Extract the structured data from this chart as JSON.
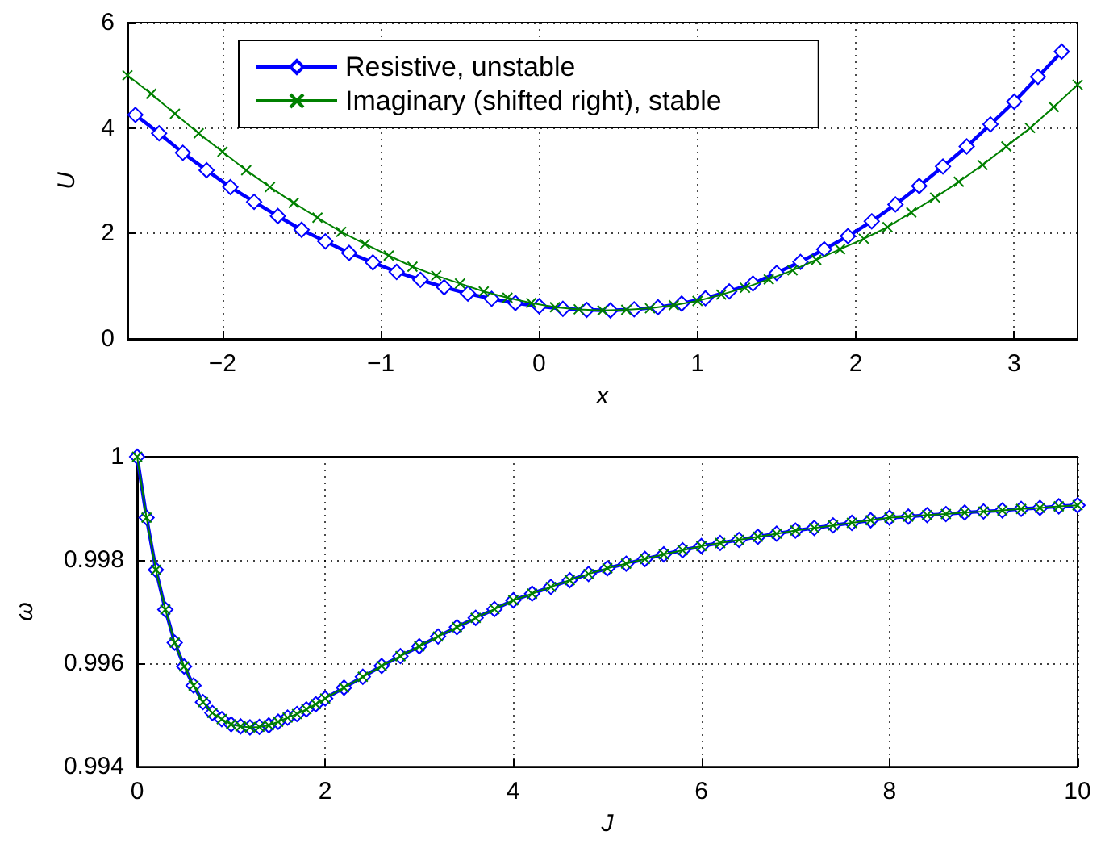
{
  "chart_data": [
    {
      "type": "line",
      "xlabel": "x",
      "ylabel": "U",
      "xlim": [
        -2.6,
        3.4
      ],
      "ylim": [
        0,
        6
      ],
      "xticks": [
        -2,
        -1,
        0,
        1,
        2,
        3
      ],
      "yticks": [
        0,
        2,
        4,
        6
      ],
      "grid": true,
      "legend": "top",
      "series": [
        {
          "name": "Resistive, unstable",
          "color": "#0000ff",
          "marker": "diamond",
          "x": [
            -2.55,
            -2.4,
            -2.25,
            -2.1,
            -1.95,
            -1.8,
            -1.65,
            -1.5,
            -1.35,
            -1.2,
            -1.05,
            -0.9,
            -0.75,
            -0.6,
            -0.45,
            -0.3,
            -0.15,
            0,
            0.15,
            0.3,
            0.45,
            0.6,
            0.75,
            0.9,
            1.05,
            1.2,
            1.35,
            1.5,
            1.65,
            1.8,
            1.95,
            2.1,
            2.25,
            2.4,
            2.55,
            2.7,
            2.85,
            3.0,
            3.15,
            3.3
          ],
          "values": [
            4.25,
            3.9,
            3.53,
            3.2,
            2.88,
            2.6,
            2.33,
            2.07,
            1.85,
            1.63,
            1.45,
            1.27,
            1.12,
            0.98,
            0.86,
            0.76,
            0.68,
            0.62,
            0.57,
            0.55,
            0.54,
            0.56,
            0.6,
            0.67,
            0.77,
            0.9,
            1.05,
            1.25,
            1.46,
            1.7,
            1.95,
            2.23,
            2.55,
            2.9,
            3.27,
            3.65,
            4.07,
            4.5,
            4.97,
            5.45
          ]
        },
        {
          "name": "Imaginary (shifted right), stable",
          "color": "#008000",
          "marker": "cross",
          "x": [
            -2.6,
            -2.45,
            -2.3,
            -2.15,
            -2.0,
            -1.85,
            -1.7,
            -1.55,
            -1.4,
            -1.25,
            -1.1,
            -0.95,
            -0.8,
            -0.65,
            -0.5,
            -0.35,
            -0.2,
            -0.05,
            0.1,
            0.25,
            0.4,
            0.55,
            0.7,
            0.85,
            1.0,
            1.15,
            1.3,
            1.45,
            1.6,
            1.75,
            1.9,
            2.05,
            2.2,
            2.35,
            2.5,
            2.65,
            2.8,
            2.95,
            3.1,
            3.25,
            3.4
          ],
          "values": [
            5.0,
            4.65,
            4.27,
            3.9,
            3.55,
            3.2,
            2.88,
            2.58,
            2.3,
            2.03,
            1.8,
            1.58,
            1.37,
            1.2,
            1.05,
            0.9,
            0.78,
            0.68,
            0.6,
            0.56,
            0.54,
            0.55,
            0.58,
            0.64,
            0.72,
            0.84,
            0.97,
            1.13,
            1.3,
            1.5,
            1.7,
            1.9,
            2.12,
            2.4,
            2.68,
            2.98,
            3.3,
            3.65,
            4.0,
            4.4,
            4.82
          ]
        }
      ]
    },
    {
      "type": "line",
      "xlabel": "J",
      "ylabel": "ω",
      "xlim": [
        0,
        10
      ],
      "ylim": [
        0.994,
        1
      ],
      "xticks": [
        0,
        2,
        4,
        6,
        8,
        10
      ],
      "yticks": [
        0.994,
        0.996,
        0.998,
        1
      ],
      "grid": true,
      "x": [
        0,
        0.1,
        0.2,
        0.3,
        0.4,
        0.5,
        0.6,
        0.7,
        0.8,
        0.9,
        1.0,
        1.1,
        1.2,
        1.3,
        1.4,
        1.5,
        1.6,
        1.7,
        1.8,
        1.9,
        2.0,
        2.2,
        2.4,
        2.6,
        2.8,
        3.0,
        3.2,
        3.4,
        3.6,
        3.8,
        4.0,
        4.2,
        4.4,
        4.6,
        4.8,
        5.0,
        5.2,
        5.4,
        5.6,
        5.8,
        6.0,
        6.2,
        6.4,
        6.6,
        6.8,
        7.0,
        7.2,
        7.4,
        7.6,
        7.8,
        8.0,
        8.2,
        8.4,
        8.6,
        8.8,
        9.0,
        9.2,
        9.4,
        9.6,
        9.8,
        10
      ],
      "series": [
        {
          "color": "#0000ff",
          "marker": "diamond",
          "values": [
            1,
            0.99882,
            0.99781,
            0.99704,
            0.9964,
            0.99594,
            0.99557,
            0.99525,
            0.99504,
            0.99492,
            0.99482,
            0.99478,
            0.99476,
            0.99477,
            0.9948,
            0.99487,
            0.99495,
            0.99502,
            0.99511,
            0.99521,
            0.99532,
            0.99553,
            0.99574,
            0.99595,
            0.99614,
            0.99633,
            0.99652,
            0.9967,
            0.99688,
            0.99705,
            0.99722,
            0.99735,
            0.99748,
            0.99761,
            0.99773,
            0.99784,
            0.99793,
            0.99802,
            0.99811,
            0.99819,
            0.99827,
            0.99833,
            0.99839,
            0.99845,
            0.99851,
            0.99857,
            0.99862,
            0.99867,
            0.99872,
            0.99877,
            0.99882,
            0.99884,
            0.99887,
            0.99889,
            0.99892,
            0.99894,
            0.99896,
            0.99899,
            0.99901,
            0.99904,
            0.99906
          ]
        },
        {
          "color": "#008000",
          "marker": "cross",
          "values": [
            1,
            0.99882,
            0.99781,
            0.99704,
            0.9964,
            0.99594,
            0.99557,
            0.99525,
            0.99504,
            0.99492,
            0.99482,
            0.99478,
            0.99476,
            0.99477,
            0.9948,
            0.99487,
            0.99495,
            0.99502,
            0.99511,
            0.99521,
            0.99532,
            0.99553,
            0.99574,
            0.99595,
            0.99614,
            0.99633,
            0.99652,
            0.9967,
            0.99688,
            0.99705,
            0.99722,
            0.99735,
            0.99748,
            0.99761,
            0.99773,
            0.99784,
            0.99793,
            0.99802,
            0.99811,
            0.99819,
            0.99827,
            0.99833,
            0.99839,
            0.99845,
            0.99851,
            0.99857,
            0.99862,
            0.99867,
            0.99872,
            0.99877,
            0.99882,
            0.99884,
            0.99887,
            0.99889,
            0.99892,
            0.99894,
            0.99896,
            0.99899,
            0.99901,
            0.99904,
            0.99906
          ]
        }
      ]
    }
  ]
}
